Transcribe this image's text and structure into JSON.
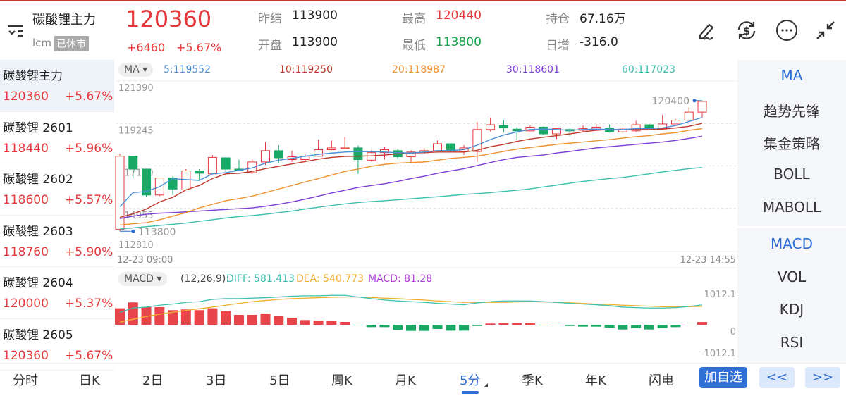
{
  "header": {
    "name": "碳酸锂主力",
    "code": "lcm",
    "status": "已休市",
    "price": "120360",
    "change": "+6460",
    "change_pct": "+5.67%",
    "stats": [
      {
        "label": "昨结",
        "value": "113900",
        "color": "#222222"
      },
      {
        "label": "最高",
        "value": "120440",
        "color": "#e5383b"
      },
      {
        "label": "持仓",
        "value": "67.16万",
        "color": "#222222"
      },
      {
        "label": "开盘",
        "value": "113900",
        "color": "#222222"
      },
      {
        "label": "最低",
        "value": "113800",
        "color": "#16a34a"
      },
      {
        "label": "日增",
        "value": "-316.0",
        "color": "#222222"
      }
    ],
    "icons": [
      "draw-icon",
      "currency-exchange-icon",
      "more-icon",
      "collapse-icon"
    ]
  },
  "list": [
    {
      "name": "碳酸锂主力",
      "price": "120360",
      "pct": "+5.67%"
    },
    {
      "name": "碳酸锂 2601",
      "price": "118440",
      "pct": "+5.96%"
    },
    {
      "name": "碳酸锂 2602",
      "price": "118600",
      "pct": "+5.57%"
    },
    {
      "name": "碳酸锂 2603",
      "price": "118760",
      "pct": "+5.90%"
    },
    {
      "name": "碳酸锂 2604",
      "price": "120000",
      "pct": "+5.37%"
    },
    {
      "name": "碳酸锂 2605",
      "price": "120360",
      "pct": "+5.67%"
    }
  ],
  "right_panel": {
    "main": [
      "MA",
      "趋势先锋",
      "集金策略",
      "BOLL",
      "MABOLL"
    ],
    "sub": [
      "MACD",
      "VOL",
      "KDJ",
      "RSI"
    ],
    "active_main": "MA",
    "active_sub": "MACD"
  },
  "bottom": {
    "periods": [
      "分时",
      "日K",
      "2日",
      "3日",
      "5日",
      "周K",
      "月K",
      "5分",
      "季K",
      "年K",
      "闪电"
    ],
    "active": "5分",
    "add_label": "加自选",
    "prev": "<<",
    "next": ">>"
  },
  "colors": {
    "up": "#e5383b",
    "down": "#1aa866",
    "ma5": "#4a90d9",
    "ma10": "#c0392b",
    "ma20": "#f0922f",
    "ma30": "#7d3fd6",
    "ma60": "#3cbfae",
    "diff": "#3cbfae",
    "dea": "#f0b030",
    "macd": "#b03fd6",
    "accent": "#2f6fd6"
  },
  "chart_data": [
    {
      "type": "candlestick",
      "indicator_label": "MA",
      "legend": [
        {
          "name": "5:119552",
          "key": "ma5"
        },
        {
          "name": "10:119250",
          "key": "ma10"
        },
        {
          "name": "20:118987",
          "key": "ma20"
        },
        {
          "name": "30:118601",
          "key": "ma30"
        },
        {
          "name": "60:117023",
          "key": "ma60"
        }
      ],
      "y_ticks": [
        "121390",
        "119245",
        "117100",
        "114955",
        "112810"
      ],
      "ylim": [
        112810,
        121390
      ],
      "x_labels": [
        "12-23 09:00",
        "12-23 14:55"
      ],
      "high_mark": "120400",
      "low_mark": "113800",
      "ohlc": [
        [
          113900,
          117710,
          113800,
          117590
        ],
        [
          117590,
          117590,
          116460,
          116940
        ],
        [
          116940,
          116940,
          115540,
          115630
        ],
        [
          115630,
          116490,
          115570,
          116490
        ],
        [
          116490,
          116580,
          115630,
          115930
        ],
        [
          115890,
          116940,
          115890,
          116850
        ],
        [
          116850,
          116940,
          116410,
          116730
        ],
        [
          116700,
          117650,
          116680,
          117530
        ],
        [
          117510,
          117510,
          116700,
          116940
        ],
        [
          116940,
          117420,
          116850,
          116850
        ],
        [
          116760,
          117440,
          116700,
          117300
        ],
        [
          117300,
          118310,
          117150,
          117870
        ],
        [
          117870,
          118150,
          117240,
          117510
        ],
        [
          117420,
          117870,
          117300,
          117560
        ],
        [
          117420,
          117710,
          117300,
          117590
        ],
        [
          117590,
          118430,
          117560,
          117920
        ],
        [
          117920,
          118390,
          117890,
          118010
        ],
        [
          117970,
          118550,
          117950,
          118010
        ],
        [
          118010,
          118130,
          116700,
          117420
        ],
        [
          117390,
          117890,
          117320,
          117770
        ],
        [
          117770,
          118070,
          117420,
          117920
        ],
        [
          117870,
          117950,
          117420,
          117560
        ],
        [
          117560,
          117890,
          117270,
          117800
        ],
        [
          117770,
          117990,
          117710,
          117870
        ],
        [
          117870,
          118390,
          117830,
          118220
        ],
        [
          118220,
          118220,
          117830,
          117870
        ],
        [
          117830,
          118150,
          117650,
          118010
        ],
        [
          117830,
          119320,
          117300,
          118940
        ],
        [
          118940,
          119530,
          118840,
          119180
        ],
        [
          119140,
          119410,
          118780,
          119020
        ],
        [
          118960,
          119060,
          118390,
          118870
        ],
        [
          118870,
          119140,
          118840,
          119060
        ],
        [
          119060,
          119100,
          118660,
          118720
        ],
        [
          118720,
          119020,
          118460,
          118990
        ],
        [
          118940,
          119020,
          118580,
          118870
        ],
        [
          118900,
          119140,
          118840,
          118990
        ],
        [
          118960,
          119220,
          118870,
          119060
        ],
        [
          119020,
          119200,
          118780,
          118820
        ],
        [
          118820,
          119020,
          118780,
          118960
        ],
        [
          118870,
          119380,
          118820,
          119180
        ],
        [
          119180,
          119220,
          118940,
          118990
        ],
        [
          118990,
          119680,
          118940,
          119220
        ],
        [
          119220,
          119460,
          119200,
          119410
        ],
        [
          119410,
          120060,
          119380,
          119820
        ],
        [
          119820,
          120400,
          119560,
          120360
        ]
      ],
      "ma": {
        "ma5": [
          115040,
          115750,
          115810,
          116050,
          116460,
          116410,
          116370,
          116700,
          116760,
          116880,
          117000,
          117240,
          117390,
          117480,
          117590,
          117680,
          117750,
          117800,
          117830,
          117820,
          117800,
          117770,
          117750,
          117800,
          117870,
          117870,
          117920,
          118150,
          118430,
          118660,
          118820,
          118940,
          118960,
          118940,
          118900,
          118940,
          118960,
          118940,
          118940,
          118990,
          118990,
          119020,
          119140,
          119340,
          119552
        ],
        "ma10": [
          114500,
          114680,
          114920,
          115280,
          115510,
          115890,
          116110,
          116460,
          116700,
          116730,
          116820,
          116960,
          117080,
          117200,
          117320,
          117440,
          117530,
          117580,
          117590,
          117610,
          117650,
          117710,
          117750,
          117770,
          117800,
          117800,
          117800,
          117890,
          118070,
          118190,
          118340,
          118460,
          118550,
          118630,
          118720,
          118820,
          118900,
          118940,
          118940,
          118940,
          118940,
          118960,
          119020,
          119100,
          119250
        ],
        "ma20": [
          114110,
          114180,
          114230,
          114380,
          114560,
          114740,
          114980,
          115160,
          115340,
          115450,
          115570,
          115750,
          115930,
          116110,
          116290,
          116460,
          116640,
          116820,
          116940,
          117080,
          117180,
          117240,
          117270,
          117300,
          117390,
          117480,
          117530,
          117590,
          117710,
          117830,
          117950,
          118030,
          118110,
          118190,
          118250,
          118310,
          118370,
          118430,
          118510,
          118580,
          118630,
          118720,
          118780,
          118900,
          118987
        ],
        "ma30": [
          114440,
          114560,
          114660,
          114710,
          114740,
          114780,
          114820,
          114860,
          114900,
          114940,
          114980,
          115060,
          115160,
          115280,
          115420,
          115570,
          115730,
          115870,
          116010,
          116110,
          116200,
          116320,
          116460,
          116580,
          116730,
          116850,
          116960,
          117120,
          117270,
          117420,
          117530,
          117590,
          117650,
          117750,
          117830,
          117920,
          118010,
          118070,
          118130,
          118190,
          118250,
          118310,
          118390,
          118490,
          118601
        ],
        "ma60": [
          113910,
          113970,
          114030,
          114090,
          114150,
          114210,
          114300,
          114380,
          114470,
          114540,
          114590,
          114660,
          114740,
          114820,
          114920,
          115010,
          115100,
          115180,
          115250,
          115300,
          115340,
          115390,
          115440,
          115490,
          115540,
          115600,
          115660,
          115700,
          115750,
          115810,
          115870,
          115940,
          116040,
          116130,
          116230,
          116320,
          116390,
          116460,
          116520,
          116610,
          116700,
          116800,
          116880,
          116960,
          117023
        ]
      }
    },
    {
      "type": "macd",
      "indicator_label": "MACD",
      "params": "(12,26,9):",
      "legend": [
        {
          "name": "DIFF: 581.413",
          "key": "diff"
        },
        {
          "name": "DEA: 540.773",
          "key": "dea"
        },
        {
          "name": "MACD: 81.28",
          "key": "macd"
        }
      ],
      "y_ticks": [
        "1012.1",
        "0",
        "-1012.1"
      ],
      "ylim": [
        -1012.1,
        1012.1
      ],
      "diff": [
        365,
        490,
        518,
        573,
        607,
        656,
        676,
        745,
        766,
        766,
        780,
        794,
        814,
        835,
        849,
        849,
        863,
        863,
        814,
        766,
        725,
        697,
        676,
        656,
        628,
        607,
        587,
        642,
        676,
        697,
        697,
        697,
        676,
        656,
        628,
        607,
        587,
        559,
        518,
        504,
        490,
        490,
        504,
        538,
        581.413
      ],
      "dea": [
        76,
        159,
        242,
        311,
        366,
        421,
        469,
        518,
        573,
        628,
        676,
        711,
        745,
        766,
        780,
        794,
        807,
        814,
        814,
        800,
        780,
        766,
        745,
        725,
        697,
        676,
        656,
        656,
        656,
        656,
        669,
        676,
        669,
        656,
        642,
        628,
        607,
        594,
        573,
        559,
        545,
        531,
        524,
        531,
        540.773
      ],
      "histogram": [
        483,
        656,
        518,
        518,
        428,
        449,
        428,
        483,
        400,
        290,
        290,
        331,
        262,
        207,
        138,
        124,
        104,
        83,
        -21,
        -69,
        -69,
        -152,
        -179,
        -179,
        -124,
        -173,
        -173,
        -35,
        35,
        55,
        41,
        41,
        0,
        -14,
        -35,
        -55,
        -55,
        -83,
        -138,
        -104,
        -138,
        -104,
        -69,
        -14,
        81.28
      ]
    }
  ]
}
